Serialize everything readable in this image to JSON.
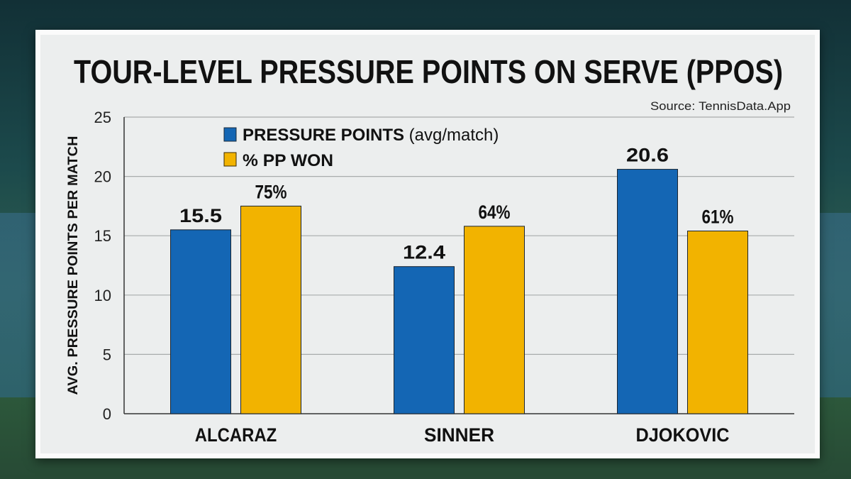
{
  "chart_data": {
    "type": "bar",
    "title": "TOUR-LEVEL PRESSURE POINTS ON SERVE (PPOS)",
    "source": "Source: TennisData.App",
    "ylabel": "AVG. PRESSURE POINTS PER MATCH",
    "xlabel": "",
    "ylim": [
      0,
      25
    ],
    "yticks": [
      "0",
      "5",
      "10",
      "15",
      "20",
      "25"
    ],
    "grid": true,
    "legend_position": "top-left",
    "categories": [
      "ALCARAZ",
      "SINNER",
      "DJOKOVIC"
    ],
    "series": [
      {
        "name_bold": "PRESSURE POINTS",
        "name_rest": " (avg/match)",
        "color": "#1466b4",
        "values": [
          15.5,
          12.4,
          20.6
        ],
        "labels": [
          "15.5",
          "12.4",
          "20.6"
        ]
      },
      {
        "name_bold": "% PP WON",
        "name_rest": "",
        "color": "#f2b300",
        "values": [
          17.5,
          15.8,
          15.4
        ],
        "labels": [
          "75%",
          "64%",
          "61%"
        ]
      }
    ]
  }
}
